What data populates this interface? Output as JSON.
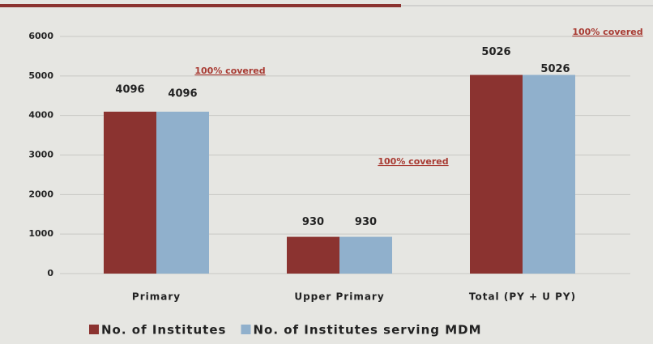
{
  "chart_data": {
    "type": "bar",
    "categories": [
      "Primary",
      "Upper Primary",
      "Total (PY + U PY)"
    ],
    "series": [
      {
        "name": "No. of Institutes",
        "color": "#8b3330",
        "values": [
          4096,
          930,
          5026
        ]
      },
      {
        "name": "No. of Institutes serving MDM",
        "color": "#90b0cc",
        "values": [
          4096,
          930,
          5026
        ]
      }
    ],
    "annotations": [
      "100% covered",
      "100% covered",
      "100% covered"
    ],
    "ylim": [
      0,
      6000
    ],
    "yticks": [
      0,
      1000,
      2000,
      3000,
      4000,
      5000,
      6000
    ],
    "grid": true
  }
}
